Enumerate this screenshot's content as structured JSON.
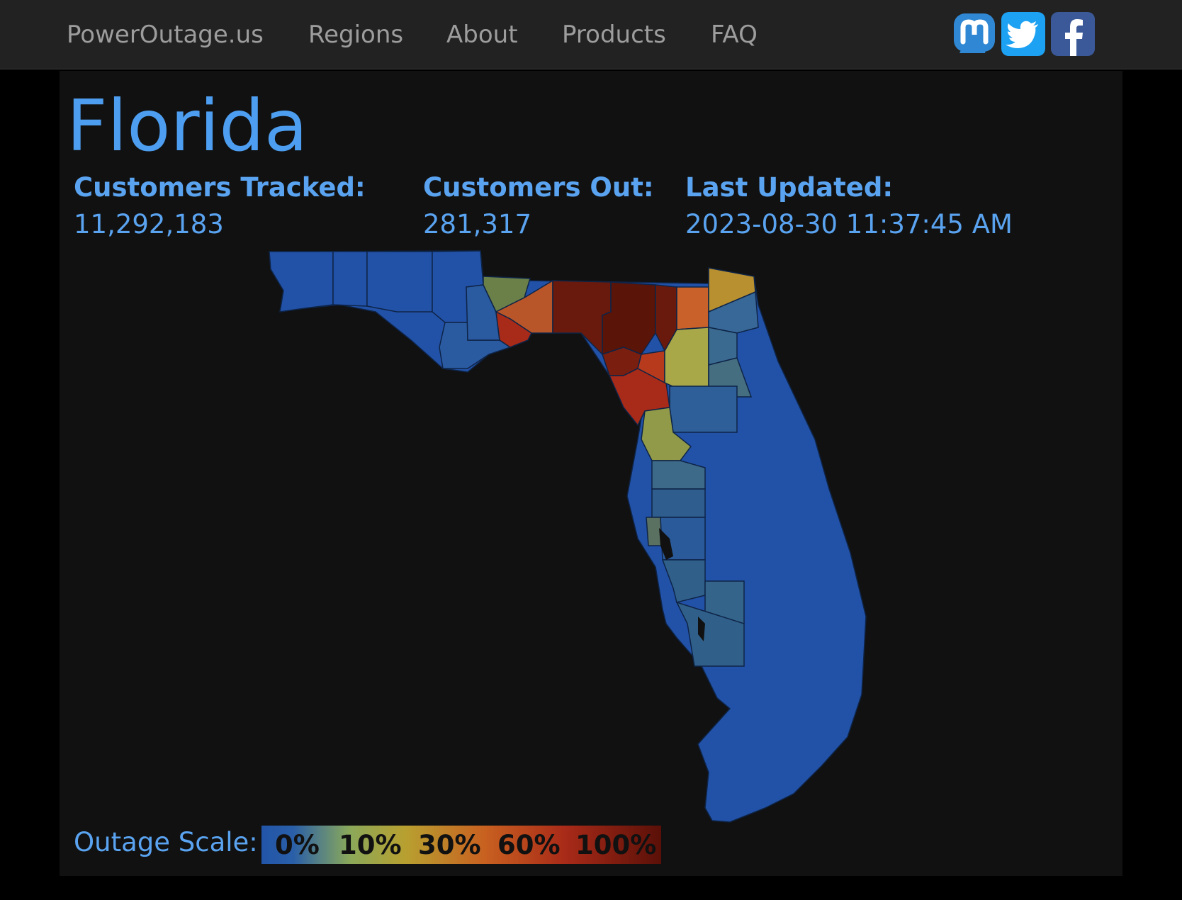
{
  "nav": {
    "brand": "PowerOutage.us",
    "links": [
      "Regions",
      "About",
      "Products",
      "FAQ"
    ]
  },
  "social": [
    {
      "icon": "mastodon-icon",
      "color": "#3088d4"
    },
    {
      "icon": "twitter-icon",
      "color": "#1da1f2"
    },
    {
      "icon": "facebook-icon",
      "color": "#3b5998"
    }
  ],
  "page": {
    "title": "Florida"
  },
  "stats": {
    "tracked_label": "Customers Tracked:",
    "tracked_value": "11,292,183",
    "out_label": "Customers Out:",
    "out_value": "281,317",
    "updated_label": "Last Updated:",
    "updated_value": "2023-08-30 11:37:45 AM"
  },
  "scale": {
    "label": "Outage Scale:",
    "ticks": [
      "0%",
      "10%",
      "30%",
      "60%",
      "100%"
    ]
  },
  "colors": {
    "accent": "#4d9ef0",
    "low": "#2255a8",
    "mid": "#b8a030",
    "high": "#5a1008"
  }
}
